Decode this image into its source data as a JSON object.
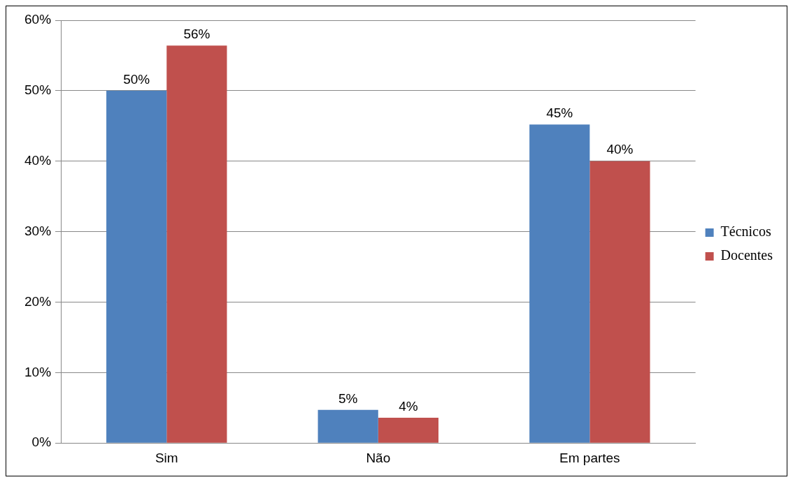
{
  "chart_data": {
    "type": "bar",
    "categories": [
      "Sim",
      "Não",
      "Em partes"
    ],
    "series": [
      {
        "name": "Técnicos",
        "color": "#4f81bd",
        "values": [
          50,
          4.7,
          45.2
        ],
        "value_labels": [
          "50%",
          "5%",
          "45%"
        ]
      },
      {
        "name": "Docentes",
        "color": "#c0504d",
        "values": [
          56.4,
          3.6,
          40
        ],
        "value_labels": [
          "56%",
          "4%",
          "40%"
        ]
      }
    ],
    "ylim": [
      0,
      60
    ],
    "yticks": [
      {
        "value": 0,
        "label": "0%"
      },
      {
        "value": 10,
        "label": "10%"
      },
      {
        "value": 20,
        "label": "20%"
      },
      {
        "value": 30,
        "label": "30%"
      },
      {
        "value": 40,
        "label": "40%"
      },
      {
        "value": 50,
        "label": "50%"
      },
      {
        "value": 60,
        "label": "60%"
      }
    ],
    "grid": "y",
    "legend": "right"
  }
}
